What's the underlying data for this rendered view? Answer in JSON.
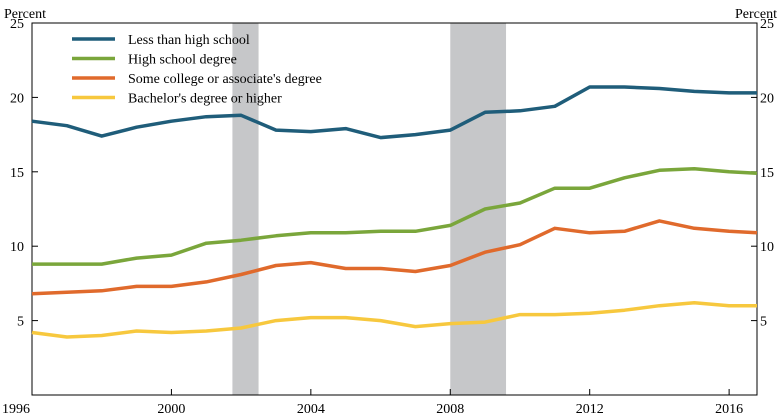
{
  "chart_data": {
    "type": "line",
    "title": "",
    "xlabel": "",
    "ylabel_left": "Percent",
    "ylabel_right": "Percent",
    "xlim": [
      1996,
      2016.8
    ],
    "ylim": [
      0,
      25
    ],
    "x_ticks": [
      1996,
      2000,
      2004,
      2008,
      2012,
      2016
    ],
    "x_tick_labels": [
      "1996",
      "2000",
      "2004",
      "2008",
      "2012",
      "2016"
    ],
    "y_ticks_left": [
      5,
      10,
      15,
      20,
      25
    ],
    "y_tick_labels_left": [
      "5",
      "10",
      "15",
      "20",
      "25"
    ],
    "y_ticks_right": [
      5,
      10,
      15,
      20,
      25
    ],
    "y_tick_labels_right": [
      "5",
      "10",
      "15",
      "20",
      "25"
    ],
    "grid": false,
    "legend_position": "top-left",
    "shaded_periods": [
      {
        "start": 2001.75,
        "end": 2002.5
      },
      {
        "start": 2008.0,
        "end": 2009.6
      }
    ],
    "x": [
      1996,
      1997,
      1998,
      1999,
      2000,
      2001,
      2002,
      2003,
      2004,
      2005,
      2006,
      2007,
      2008,
      2009,
      2010,
      2011,
      2012,
      2013,
      2014,
      2015,
      2016,
      2016.8
    ],
    "series": [
      {
        "name": "Less than high school",
        "color": "#1f5d7a",
        "values": [
          18.4,
          18.1,
          17.4,
          18.0,
          18.4,
          18.7,
          18.8,
          17.8,
          17.7,
          17.9,
          17.3,
          17.5,
          17.8,
          19.0,
          19.1,
          19.4,
          20.7,
          20.7,
          20.6,
          20.4,
          20.3,
          20.3
        ]
      },
      {
        "name": "High school degree",
        "color": "#7aa63b",
        "values": [
          8.8,
          8.8,
          8.8,
          9.2,
          9.4,
          10.2,
          10.4,
          10.7,
          10.9,
          10.9,
          11.0,
          11.0,
          11.4,
          12.5,
          12.9,
          13.9,
          13.9,
          14.6,
          15.1,
          15.2,
          15.0,
          14.9
        ]
      },
      {
        "name": "Some college or associate's degree",
        "color": "#e06a2c",
        "values": [
          6.8,
          6.9,
          7.0,
          7.3,
          7.3,
          7.6,
          8.1,
          8.7,
          8.9,
          8.5,
          8.5,
          8.3,
          8.7,
          9.6,
          10.1,
          11.2,
          10.9,
          11.0,
          11.7,
          11.2,
          11.0,
          10.9
        ]
      },
      {
        "name": "Bachelor's degree or higher",
        "color": "#f7c83e",
        "values": [
          4.2,
          3.9,
          4.0,
          4.3,
          4.2,
          4.3,
          4.5,
          5.0,
          5.2,
          5.2,
          5.0,
          4.6,
          4.8,
          4.9,
          5.4,
          5.4,
          5.5,
          5.7,
          6.0,
          6.2,
          6.0,
          6.0
        ]
      }
    ]
  }
}
